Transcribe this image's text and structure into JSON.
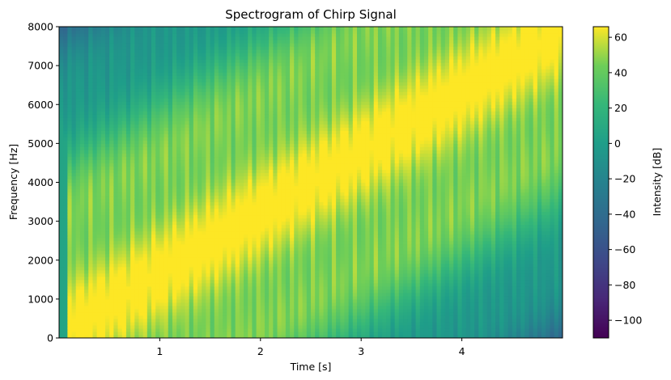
{
  "chart_data": {
    "type": "heatmap",
    "title": "Spectrogram of Chirp Signal",
    "xlabel": "Time [s]",
    "ylabel": "Frequency [Hz]",
    "colorbar_label": "Intensity [dB]",
    "colormap": "viridis",
    "xlim": [
      0.0,
      5.0
    ],
    "ylim": [
      0,
      8000
    ],
    "x_ticks": [
      1,
      2,
      3,
      4
    ],
    "y_ticks": [
      0,
      1000,
      2000,
      3000,
      4000,
      5000,
      6000,
      7000,
      8000
    ],
    "clim": [
      -110,
      66
    ],
    "colorbar_ticks": [
      60,
      40,
      20,
      0,
      -20,
      -40,
      -60,
      -80,
      -100
    ],
    "colorbar_tick_labels": [
      "60",
      "40",
      "20",
      "0",
      "−20",
      "−40",
      "−60",
      "−80",
      "−100"
    ],
    "chirp": {
      "f_start_hz": 100,
      "f_end_hz": 7900,
      "t_start_s": 0.0,
      "t_end_s": 5.0,
      "peak_db": 66
    },
    "grid": false,
    "legend": "none"
  }
}
